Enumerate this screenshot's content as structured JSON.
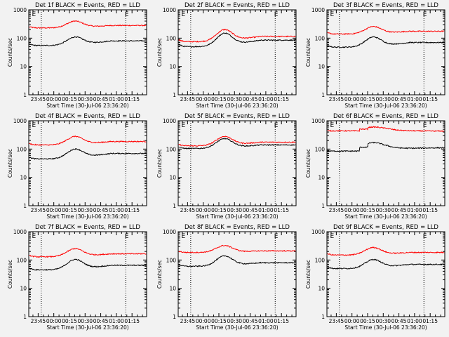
{
  "chart_data": [
    {
      "type": "line",
      "title": "Det 1f BLACK = Events, RED = LLD",
      "xlabel": "Start Time (30-Jul-06 23:36:20)",
      "ylabel": "Counts/sec",
      "x_ticks": [
        "23:45",
        "00:00",
        "00:15",
        "00:30",
        "00:45",
        "01:00",
        "01:15"
      ],
      "y_ticks": [
        "1",
        "10",
        "100",
        "1000"
      ],
      "ylim": [
        1,
        1000
      ],
      "y_scale": "log",
      "x_range_minutes": [
        -9,
        104
      ],
      "markers": [
        "E",
        "E"
      ],
      "marker_positions_minutes": [
        -6,
        83
      ],
      "vline_positions_minutes": [
        3,
        84
      ],
      "series": [
        {
          "color": "#ff0000",
          "shape": "hump",
          "base": 230,
          "peak": 390,
          "end": 280
        },
        {
          "color": "#000000",
          "shape": "hump",
          "base": 55,
          "peak": 105,
          "end": 80
        }
      ]
    },
    {
      "type": "line",
      "title": "Det 2f BLACK = Events, RED = LLD",
      "xlabel": "Start Time (30-Jul-06 23:36:20)",
      "ylabel": "Counts/sec",
      "x_ticks": [
        "23:45",
        "00:00",
        "00:15",
        "00:30",
        "00:45",
        "01:00",
        "01:15"
      ],
      "y_ticks": [
        "1",
        "10",
        "100",
        "1000"
      ],
      "ylim": [
        1,
        1000
      ],
      "y_scale": "log",
      "x_range_minutes": [
        -9,
        104
      ],
      "markers": [
        "E",
        "E"
      ],
      "marker_positions_minutes": [
        -6,
        83
      ],
      "vline_positions_minutes": [
        3,
        84
      ],
      "series": [
        {
          "color": "#ff0000",
          "shape": "hump",
          "base": 75,
          "peak": 190,
          "end": 115
        },
        {
          "color": "#000000",
          "shape": "hump",
          "base": 50,
          "peak": 140,
          "end": 85
        }
      ]
    },
    {
      "type": "line",
      "title": "Det 3f BLACK = Events, RED = LLD",
      "xlabel": "Start Time (30-Jul-06 23:36:20)",
      "ylabel": "Counts/sec",
      "x_ticks": [
        "23:45",
        "00:00",
        "00:15",
        "00:30",
        "00:45",
        "01:00",
        "01:15"
      ],
      "y_ticks": [
        "1",
        "10",
        "100",
        "1000"
      ],
      "ylim": [
        1,
        1000
      ],
      "y_scale": "log",
      "x_range_minutes": [
        -9,
        104
      ],
      "markers": [
        "E",
        "E"
      ],
      "marker_positions_minutes": [
        -6,
        83
      ],
      "vline_positions_minutes": [
        3,
        84
      ],
      "series": [
        {
          "color": "#ff0000",
          "shape": "hump",
          "base": 140,
          "peak": 250,
          "end": 175
        },
        {
          "color": "#000000",
          "shape": "hump",
          "base": 48,
          "peak": 105,
          "end": 70
        }
      ]
    },
    {
      "type": "line",
      "title": "Det 4f BLACK = Events, RED = LLD",
      "xlabel": "Start Time (30-Jul-06 23:36:20)",
      "ylabel": "Counts/sec",
      "x_ticks": [
        "23:45",
        "00:00",
        "00:15",
        "00:30",
        "00:45",
        "01:00",
        "01:15"
      ],
      "y_ticks": [
        "1",
        "10",
        "100",
        "1000"
      ],
      "ylim": [
        1,
        1000
      ],
      "y_scale": "log",
      "x_range_minutes": [
        -9,
        104
      ],
      "markers": [
        "E",
        "E"
      ],
      "marker_positions_minutes": [
        -6,
        83
      ],
      "vline_positions_minutes": [
        3,
        84
      ],
      "series": [
        {
          "color": "#ff0000",
          "shape": "hump",
          "base": 140,
          "peak": 270,
          "end": 185
        },
        {
          "color": "#000000",
          "shape": "hump",
          "base": 45,
          "peak": 95,
          "end": 70
        }
      ]
    },
    {
      "type": "line",
      "title": "Det 5f BLACK = Events, RED = LLD",
      "xlabel": "Start Time (30-Jul-06 23:36:20)",
      "ylabel": "Counts/sec",
      "x_ticks": [
        "23:45",
        "00:00",
        "00:15",
        "00:30",
        "00:45",
        "01:00",
        "01:15"
      ],
      "y_ticks": [
        "1",
        "10",
        "100",
        "1000"
      ],
      "ylim": [
        1,
        1000
      ],
      "y_scale": "log",
      "x_range_minutes": [
        -9,
        104
      ],
      "markers": [
        "E",
        "E"
      ],
      "marker_positions_minutes": [
        -6,
        83
      ],
      "vline_positions_minutes": [
        3,
        84
      ],
      "series": [
        {
          "color": "#ff0000",
          "shape": "hump",
          "base": 130,
          "peak": 270,
          "end": 175
        },
        {
          "color": "#000000",
          "shape": "hump",
          "base": 105,
          "peak": 225,
          "end": 140
        }
      ]
    },
    {
      "type": "line",
      "title": "Det 6f BLACK = Events, RED = LLD",
      "xlabel": "Start Time (30-Jul-06 23:36:20)",
      "ylabel": "Counts/sec",
      "x_ticks": [
        "23:45",
        "00:00",
        "00:15",
        "00:30",
        "00:45",
        "01:00",
        "01:15"
      ],
      "y_ticks": [
        "1",
        "10",
        "100",
        "1000"
      ],
      "ylim": [
        1,
        1000
      ],
      "y_scale": "log",
      "x_range_minutes": [
        -9,
        104
      ],
      "markers": [
        "E",
        "E"
      ],
      "marker_positions_minutes": [
        -6,
        83
      ],
      "vline_positions_minutes": [
        3,
        84
      ],
      "series": [
        {
          "color": "#ff0000",
          "shape": "step",
          "base": 440,
          "peak": 600,
          "end": 430
        },
        {
          "color": "#000000",
          "shape": "step",
          "base": 85,
          "peak": 170,
          "end": 115
        }
      ]
    },
    {
      "type": "line",
      "title": "Det 7f BLACK = Events, RED = LLD",
      "xlabel": "Start Time (30-Jul-06 23:36:20)",
      "ylabel": "Counts/sec",
      "x_ticks": [
        "23:45",
        "00:00",
        "00:15",
        "00:30",
        "00:45",
        "01:00",
        "01:15"
      ],
      "y_ticks": [
        "1",
        "10",
        "100",
        "1000"
      ],
      "ylim": [
        1,
        1000
      ],
      "y_scale": "log",
      "x_range_minutes": [
        -9,
        104
      ],
      "markers": [
        "E",
        "E"
      ],
      "marker_positions_minutes": [
        -6,
        83
      ],
      "vline_positions_minutes": [
        3,
        84
      ],
      "series": [
        {
          "color": "#ff0000",
          "shape": "hump",
          "base": 130,
          "peak": 245,
          "end": 165
        },
        {
          "color": "#000000",
          "shape": "hump",
          "base": 45,
          "peak": 100,
          "end": 65
        }
      ]
    },
    {
      "type": "line",
      "title": "Det 8f BLACK = Events, RED = LLD",
      "xlabel": "Start Time (30-Jul-06 23:36:20)",
      "ylabel": "Counts/sec",
      "x_ticks": [
        "23:45",
        "00:00",
        "00:15",
        "00:30",
        "00:45",
        "01:00",
        "01:15"
      ],
      "y_ticks": [
        "1",
        "10",
        "100",
        "1000"
      ],
      "ylim": [
        1,
        1000
      ],
      "y_scale": "log",
      "x_range_minutes": [
        -9,
        104
      ],
      "markers": [
        "E",
        "E"
      ],
      "marker_positions_minutes": [
        -6,
        83
      ],
      "vline_positions_minutes": [
        3,
        84
      ],
      "series": [
        {
          "color": "#ff0000",
          "shape": "hump",
          "base": 185,
          "peak": 320,
          "end": 210
        },
        {
          "color": "#000000",
          "shape": "hump",
          "base": 60,
          "peak": 135,
          "end": 80
        }
      ]
    },
    {
      "type": "line",
      "title": "Det 9f BLACK = Events, RED = LLD",
      "xlabel": "Start Time (30-Jul-06 23:36:20)",
      "ylabel": "Counts/sec",
      "x_ticks": [
        "23:45",
        "00:00",
        "00:15",
        "00:30",
        "00:45",
        "01:00",
        "01:15"
      ],
      "y_ticks": [
        "1",
        "10",
        "100",
        "1000"
      ],
      "ylim": [
        1,
        1000
      ],
      "y_scale": "log",
      "x_range_minutes": [
        -9,
        104
      ],
      "markers": [
        "E",
        "E"
      ],
      "marker_positions_minutes": [
        -6,
        83
      ],
      "vline_positions_minutes": [
        3,
        84
      ],
      "series": [
        {
          "color": "#ff0000",
          "shape": "hump",
          "base": 150,
          "peak": 270,
          "end": 185
        },
        {
          "color": "#000000",
          "shape": "hump",
          "base": 50,
          "peak": 100,
          "end": 70
        }
      ]
    }
  ]
}
